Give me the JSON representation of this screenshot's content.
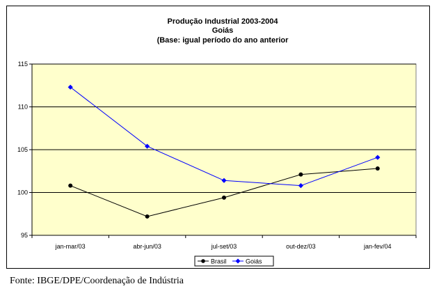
{
  "chart_data": {
    "type": "line",
    "title_lines": [
      "Produção Industrial 2003-2004",
      "Goiás",
      "(Base: igual período do ano anterior"
    ],
    "categories": [
      "jan-mar/03",
      "abr-jun/03",
      "jul-set/03",
      "out-dez/03",
      "jan-fev/04"
    ],
    "series": [
      {
        "name": "Brasil",
        "values": [
          100.8,
          97.2,
          99.4,
          102.1,
          102.8
        ],
        "color": "#000000",
        "marker": "circle"
      },
      {
        "name": "Goiás",
        "values": [
          112.3,
          105.4,
          101.4,
          100.8,
          104.1
        ],
        "color": "#0000ff",
        "marker": "diamond"
      }
    ],
    "ylim": [
      95,
      115
    ],
    "yticks": [
      "95",
      "100",
      "105",
      "110",
      "115"
    ],
    "grid": true,
    "plot_background": "#ffffcc",
    "legend_placement": "bottom-center"
  },
  "source_note": "Fonte: IBGE/DPE/Coordenação de Indústria"
}
